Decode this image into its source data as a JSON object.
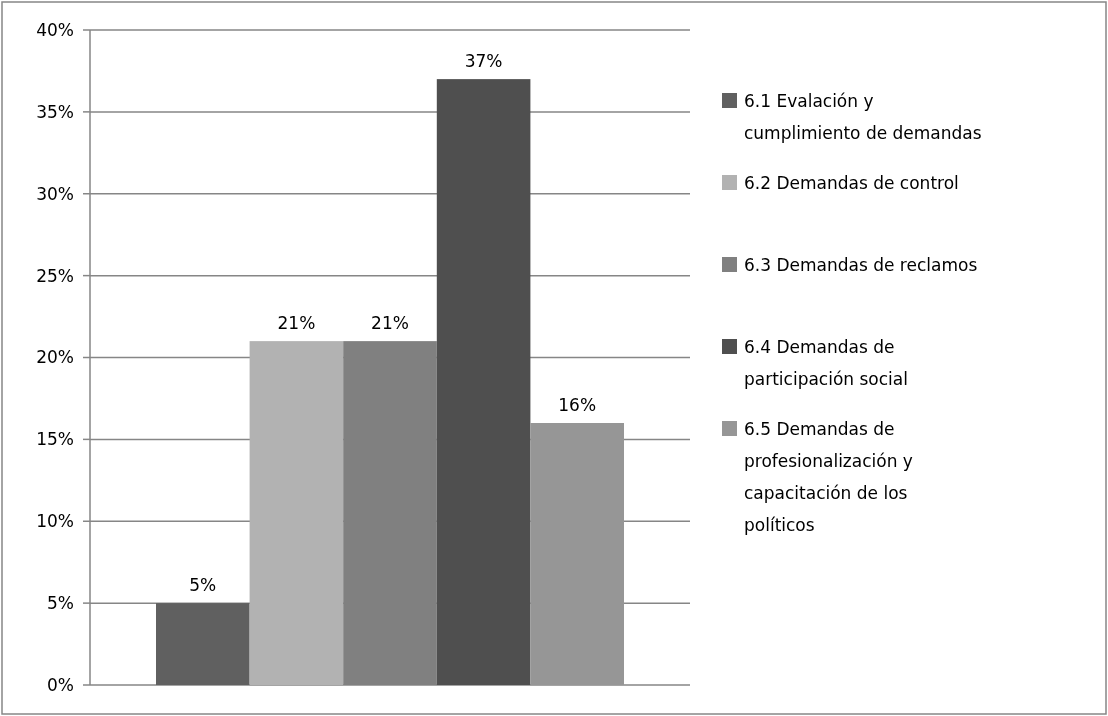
{
  "chart_data": {
    "type": "bar",
    "categories": [
      null
    ],
    "series": [
      {
        "name": "6.1 Evalación y cumplimiento de demandas",
        "color": "#606060",
        "values": [
          5
        ],
        "value_labels": [
          "5%"
        ]
      },
      {
        "name": "6.2 Demandas de control",
        "color": "#b2b2b2",
        "values": [
          21
        ],
        "value_labels": [
          "21%"
        ]
      },
      {
        "name": "6.3 Demandas de reclamos",
        "color": "#808080",
        "values": [
          21
        ],
        "value_labels": [
          "21%"
        ]
      },
      {
        "name": "6.4 Demandas de participación social",
        "color": "#4f4f4f",
        "values": [
          37
        ],
        "value_labels": [
          "37%"
        ]
      },
      {
        "name": "6.5 Demandas de profesionalización y capacitación de los políticos",
        "color": "#969696",
        "values": [
          16
        ],
        "value_labels": [
          "16%"
        ]
      }
    ],
    "ylim": [
      0,
      40
    ],
    "yticks": [
      {
        "value": 0,
        "label": "0%"
      },
      {
        "value": 5,
        "label": "5%"
      },
      {
        "value": 10,
        "label": "10%"
      },
      {
        "value": 15,
        "label": "15%"
      },
      {
        "value": 20,
        "label": "20%"
      },
      {
        "value": 25,
        "label": "25%"
      },
      {
        "value": 30,
        "label": "30%"
      },
      {
        "value": 35,
        "label": "35%"
      },
      {
        "value": 40,
        "label": "40%"
      }
    ],
    "grid": "y",
    "legend": "right"
  }
}
